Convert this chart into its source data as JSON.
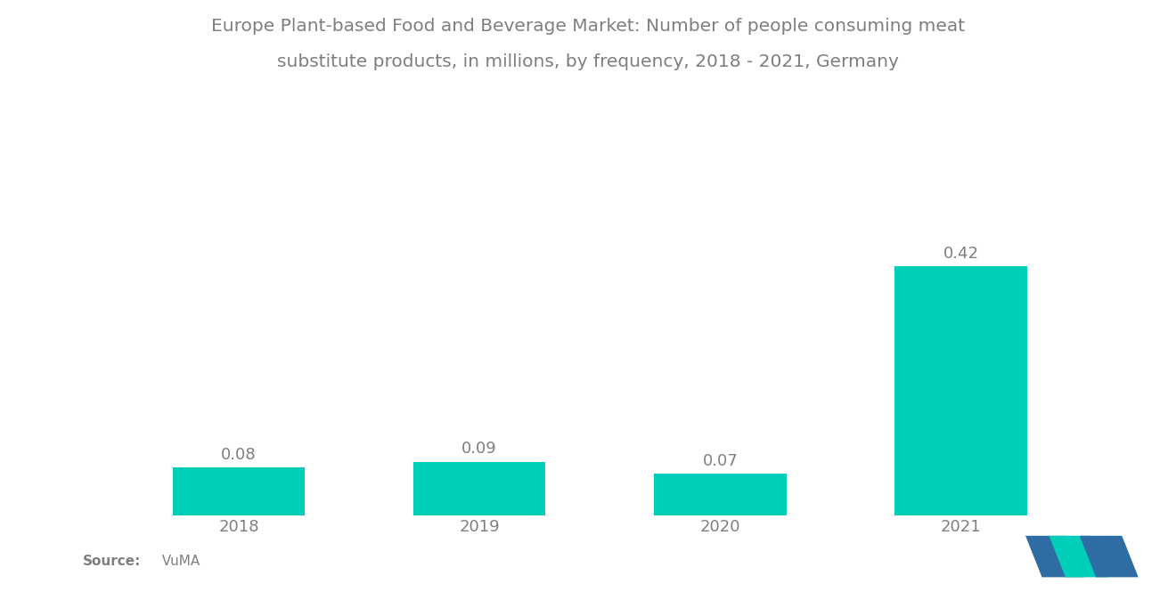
{
  "title_line1": "Europe Plant-based Food and Beverage Market: Number of people consuming meat",
  "title_line2": "substitute products, in millions, by frequency, 2018 - 2021, Germany",
  "categories": [
    "2018",
    "2019",
    "2020",
    "2021"
  ],
  "values": [
    0.08,
    0.09,
    0.07,
    0.42
  ],
  "bar_color": "#00CEB8",
  "background_color": "#FFFFFF",
  "text_color": "#7F7F7F",
  "source_label": "Source:",
  "source_value": "  VuMA",
  "ylim": [
    0,
    0.52
  ],
  "title_fontsize": 14.5,
  "label_fontsize": 13,
  "tick_fontsize": 13,
  "source_fontsize": 11,
  "bar_width": 0.55,
  "logo_color_blue": "#2E6DA4",
  "logo_color_teal": "#00CEB8"
}
